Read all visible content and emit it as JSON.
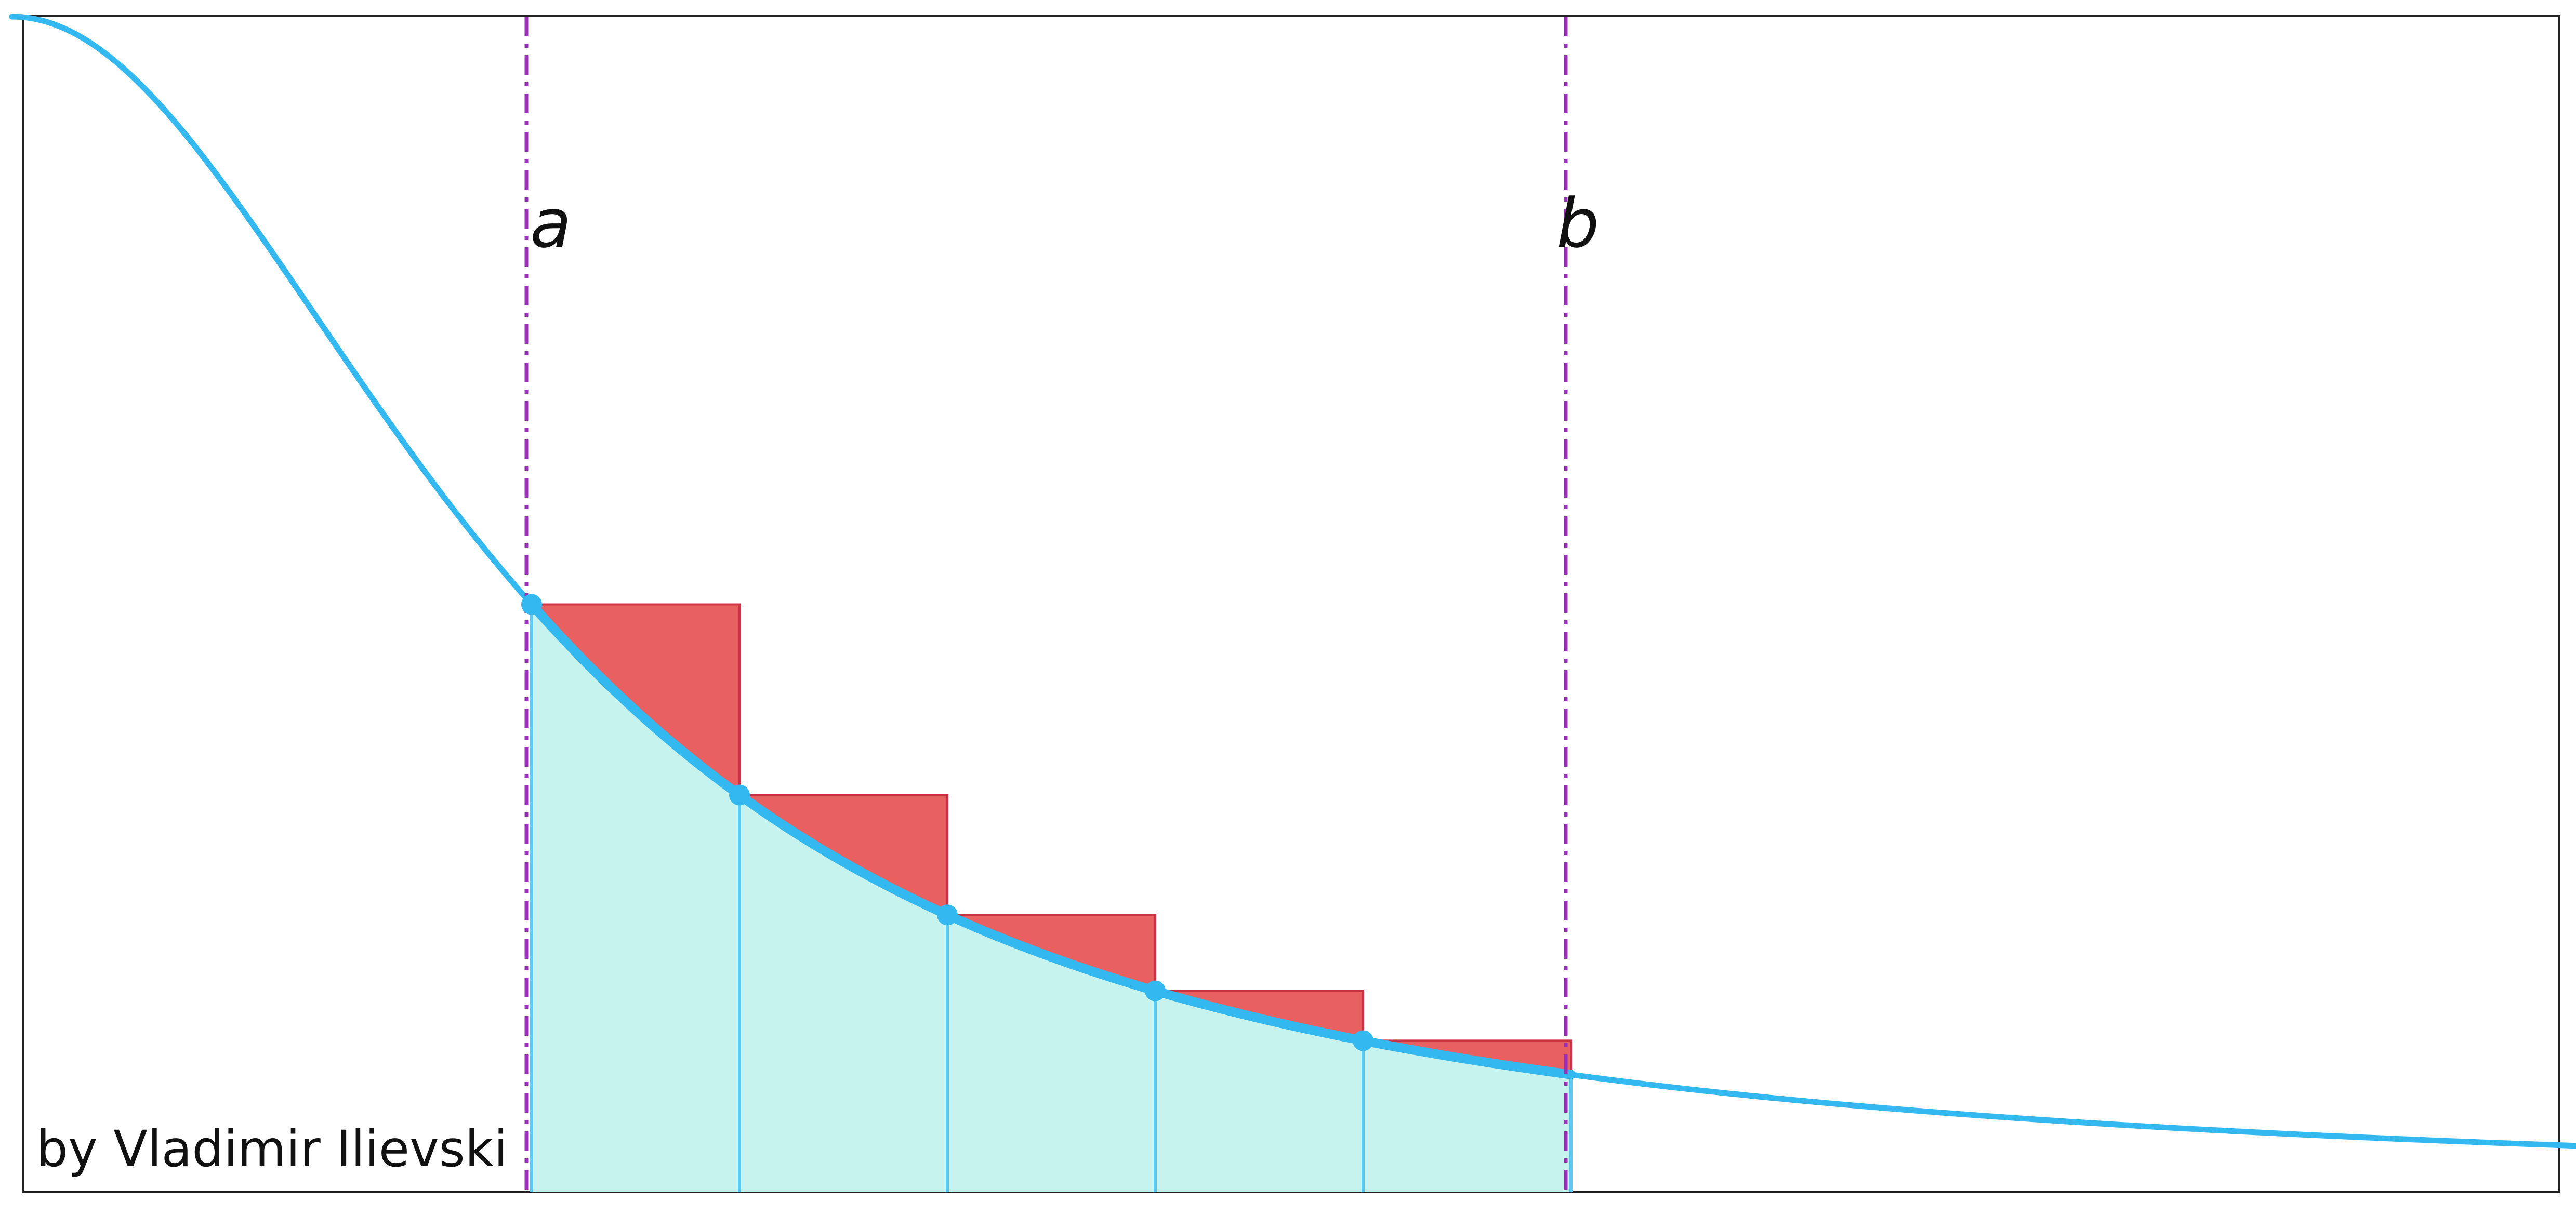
{
  "labels": {
    "left_bound": "a",
    "right_bound": "b",
    "credit": "by Vladimir Ilievski"
  },
  "function": {
    "definition": "1/(1+x^2)",
    "x_range": [
      0,
      5
    ]
  },
  "interval": {
    "a": 1,
    "b": 3
  },
  "partition_count": 5,
  "sample_points": [
    1.0,
    1.4,
    1.8,
    2.2,
    2.6
  ],
  "colors": {
    "curve": "#33b8f0",
    "area_fill": "#c7f3ee",
    "excess_fill": "#e86060",
    "excess_stroke": "#cc3344",
    "partition_line": "#5cc8ee",
    "bound_line": "#9b2fb8",
    "frame": "#222222"
  }
}
